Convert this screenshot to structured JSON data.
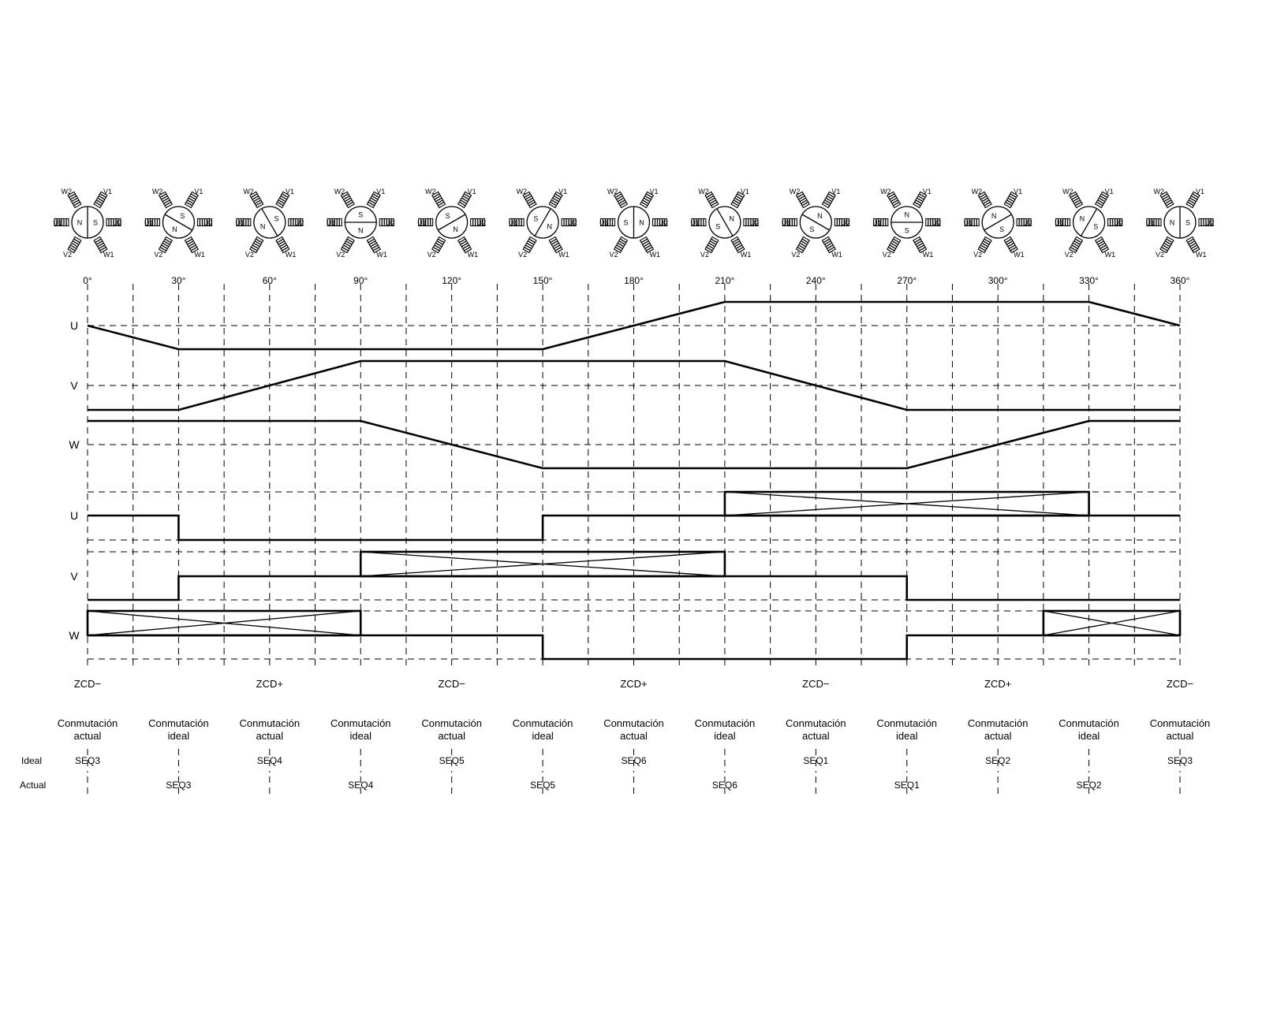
{
  "angle_labels": [
    "0°",
    "30°",
    "60°",
    "90°",
    "120°",
    "150°",
    "180°",
    "210°",
    "240°",
    "270°",
    "300°",
    "330°",
    "360°"
  ],
  "phases": [
    "U",
    "V",
    "W"
  ],
  "coil_labels": {
    "U1": "U1",
    "U2": "U2",
    "V1": "V1",
    "V2": "V2",
    "W1": "W1",
    "W2": "W2"
  },
  "pole_labels": {
    "north": "N",
    "south": "S"
  },
  "rotor_north_angles_deg": [
    180,
    120,
    150,
    90,
    60,
    30,
    0,
    -30,
    -60,
    -90,
    -120,
    -150,
    180
  ],
  "zcd_labels": [
    "ZCD−",
    "ZCD+",
    "ZCD−",
    "ZCD+",
    "ZCD−",
    "ZCD+",
    "ZCD−"
  ],
  "commutation": {
    "line1": "Conmutación",
    "types": [
      "actual",
      "ideal",
      "actual",
      "ideal",
      "actual",
      "ideal",
      "actual",
      "ideal",
      "actual",
      "ideal",
      "actual",
      "ideal",
      "actual"
    ]
  },
  "row_labels": {
    "ideal": "Ideal",
    "actual": "Actual"
  },
  "ideal_sequence": [
    "SEQ3",
    "SEQ4",
    "SEQ5",
    "SEQ6",
    "SEQ1",
    "SEQ2",
    "SEQ3"
  ],
  "actual_sequence": [
    "SEQ3",
    "SEQ4",
    "SEQ5",
    "SEQ6",
    "SEQ1",
    "SEQ2"
  ],
  "chart_data": {
    "type": "line",
    "x_unit": "electrical degrees",
    "xlim": [
      0,
      360
    ],
    "back_emf_levels": {
      "high": 1,
      "zero": 0,
      "low": -1
    },
    "back_emf": [
      {
        "phase": "U",
        "points": [
          [
            0,
            0
          ],
          [
            30,
            -1
          ],
          [
            150,
            -1
          ],
          [
            210,
            1
          ],
          [
            330,
            1
          ],
          [
            360,
            0
          ]
        ]
      },
      {
        "phase": "V",
        "points": [
          [
            0,
            -1
          ],
          [
            30,
            -1
          ],
          [
            90,
            1
          ],
          [
            210,
            1
          ],
          [
            270,
            -1
          ],
          [
            360,
            -1
          ]
        ]
      },
      {
        "phase": "W",
        "points": [
          [
            0,
            1
          ],
          [
            90,
            1
          ],
          [
            150,
            -1
          ],
          [
            270,
            -1
          ],
          [
            330,
            1
          ],
          [
            360,
            1
          ]
        ]
      }
    ],
    "drive_state_levels": {
      "high": 1,
      "floating": 0,
      "low": -1
    },
    "drive_states": [
      {
        "phase": "U",
        "segments": [
          {
            "from": 0,
            "to": 30,
            "state": 0
          },
          {
            "from": 30,
            "to": 150,
            "state": -1
          },
          {
            "from": 150,
            "to": 210,
            "state": 0
          },
          {
            "from": 210,
            "to": 330,
            "state": "float"
          },
          {
            "from": 330,
            "to": 360,
            "state": 0
          }
        ]
      },
      {
        "phase": "V",
        "segments": [
          {
            "from": 0,
            "to": 30,
            "state": -1
          },
          {
            "from": 30,
            "to": 90,
            "state": 0
          },
          {
            "from": 90,
            "to": 210,
            "state": "float"
          },
          {
            "from": 210,
            "to": 270,
            "state": 0
          },
          {
            "from": 270,
            "to": 360,
            "state": -1
          }
        ]
      },
      {
        "phase": "W",
        "segments": [
          {
            "from": 0,
            "to": 90,
            "state": "float"
          },
          {
            "from": 90,
            "to": 150,
            "state": 0
          },
          {
            "from": 150,
            "to": 270,
            "state": -1
          },
          {
            "from": 270,
            "to": 315,
            "state": 0
          },
          {
            "from": 315,
            "to": 360,
            "state": "float"
          }
        ]
      }
    ]
  }
}
